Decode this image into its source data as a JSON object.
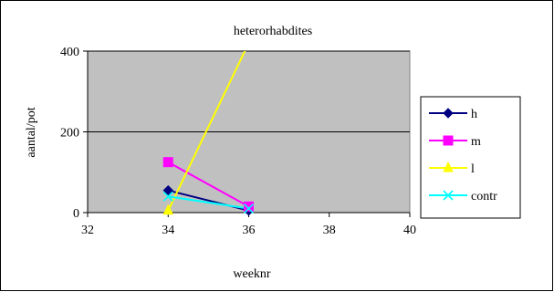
{
  "chart_data": {
    "type": "line",
    "title": "heterorhabdites",
    "xlabel": "weeknr",
    "ylabel": "aantal/pot",
    "xlim": [
      32,
      40
    ],
    "ylim": [
      0,
      400
    ],
    "x_ticks": [
      32,
      34,
      36,
      38,
      40
    ],
    "y_ticks": [
      0,
      200,
      400
    ],
    "grid": "horizontal major gridlines",
    "legend_position": "right",
    "plot_background": "#c0c0c0",
    "series": [
      {
        "name": "h",
        "x": [
          34,
          36
        ],
        "y": [
          55,
          5
        ],
        "color": "#000080",
        "marker": "diamond"
      },
      {
        "name": "m",
        "x": [
          34,
          36
        ],
        "y": [
          125,
          15
        ],
        "color": "#ff00ff",
        "marker": "square"
      },
      {
        "name": "l",
        "x": [
          34,
          36
        ],
        "y": [
          5,
          420
        ],
        "color": "#ffff00",
        "marker": "triangle"
      },
      {
        "name": "contr",
        "x": [
          34,
          36
        ],
        "y": [
          40,
          10
        ],
        "color": "#00ffff",
        "marker": "x"
      }
    ]
  }
}
